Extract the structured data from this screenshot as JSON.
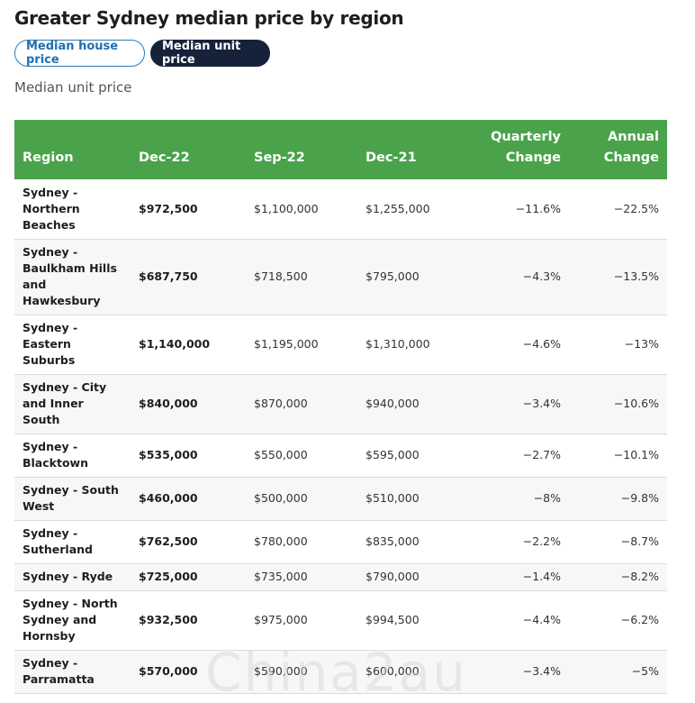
{
  "title": "Greater Sydney median price by region",
  "toggle": {
    "house_label": "Median house price",
    "unit_label": "Median unit price",
    "selected": "unit"
  },
  "subtitle": "Median unit price",
  "table": {
    "columns": [
      "Region",
      "Dec-22",
      "Sep-22",
      "Dec-21",
      "Quarterly Change",
      "Annual Change"
    ],
    "col_region": "Region",
    "col_dec22": "Dec-22",
    "col_sep22": "Sep-22",
    "col_dec21": "Dec-21",
    "col_quarterly_1": "Quarterly",
    "col_quarterly_2": "Change",
    "col_annual_1": "Annual",
    "col_annual_2": "Change",
    "rows": [
      {
        "region": "Sydney - Northern Beaches",
        "dec22": "$972,500",
        "sep22": "$1,100,000",
        "dec21": "$1,255,000",
        "quarterly": "−11.6%",
        "annual": "−22.5%"
      },
      {
        "region": "Sydney - Baulkham Hills and Hawkesbury",
        "dec22": "$687,750",
        "sep22": "$718,500",
        "dec21": "$795,000",
        "quarterly": "−4.3%",
        "annual": "−13.5%"
      },
      {
        "region": "Sydney - Eastern Suburbs",
        "dec22": "$1,140,000",
        "sep22": "$1,195,000",
        "dec21": "$1,310,000",
        "quarterly": "−4.6%",
        "annual": "−13%"
      },
      {
        "region": "Sydney - City and Inner South",
        "dec22": "$840,000",
        "sep22": "$870,000",
        "dec21": "$940,000",
        "quarterly": "−3.4%",
        "annual": "−10.6%"
      },
      {
        "region": "Sydney - Blacktown",
        "dec22": "$535,000",
        "sep22": "$550,000",
        "dec21": "$595,000",
        "quarterly": "−2.7%",
        "annual": "−10.1%"
      },
      {
        "region": "Sydney - South West",
        "dec22": "$460,000",
        "sep22": "$500,000",
        "dec21": "$510,000",
        "quarterly": "−8%",
        "annual": "−9.8%"
      },
      {
        "region": "Sydney - Sutherland",
        "dec22": "$762,500",
        "sep22": "$780,000",
        "dec21": "$835,000",
        "quarterly": "−2.2%",
        "annual": "−8.7%"
      },
      {
        "region": "Sydney - Ryde",
        "dec22": "$725,000",
        "sep22": "$735,000",
        "dec21": "$790,000",
        "quarterly": "−1.4%",
        "annual": "−8.2%"
      },
      {
        "region": "Sydney - North Sydney and Hornsby",
        "dec22": "$932,500",
        "sep22": "$975,000",
        "dec21": "$994,500",
        "quarterly": "−4.4%",
        "annual": "−6.2%"
      },
      {
        "region": "Sydney - Parramatta",
        "dec22": "$570,000",
        "sep22": "$590,000",
        "dec21": "$600,000",
        "quarterly": "−3.4%",
        "annual": "−5%"
      }
    ]
  },
  "watermark": "Chinа2au"
}
